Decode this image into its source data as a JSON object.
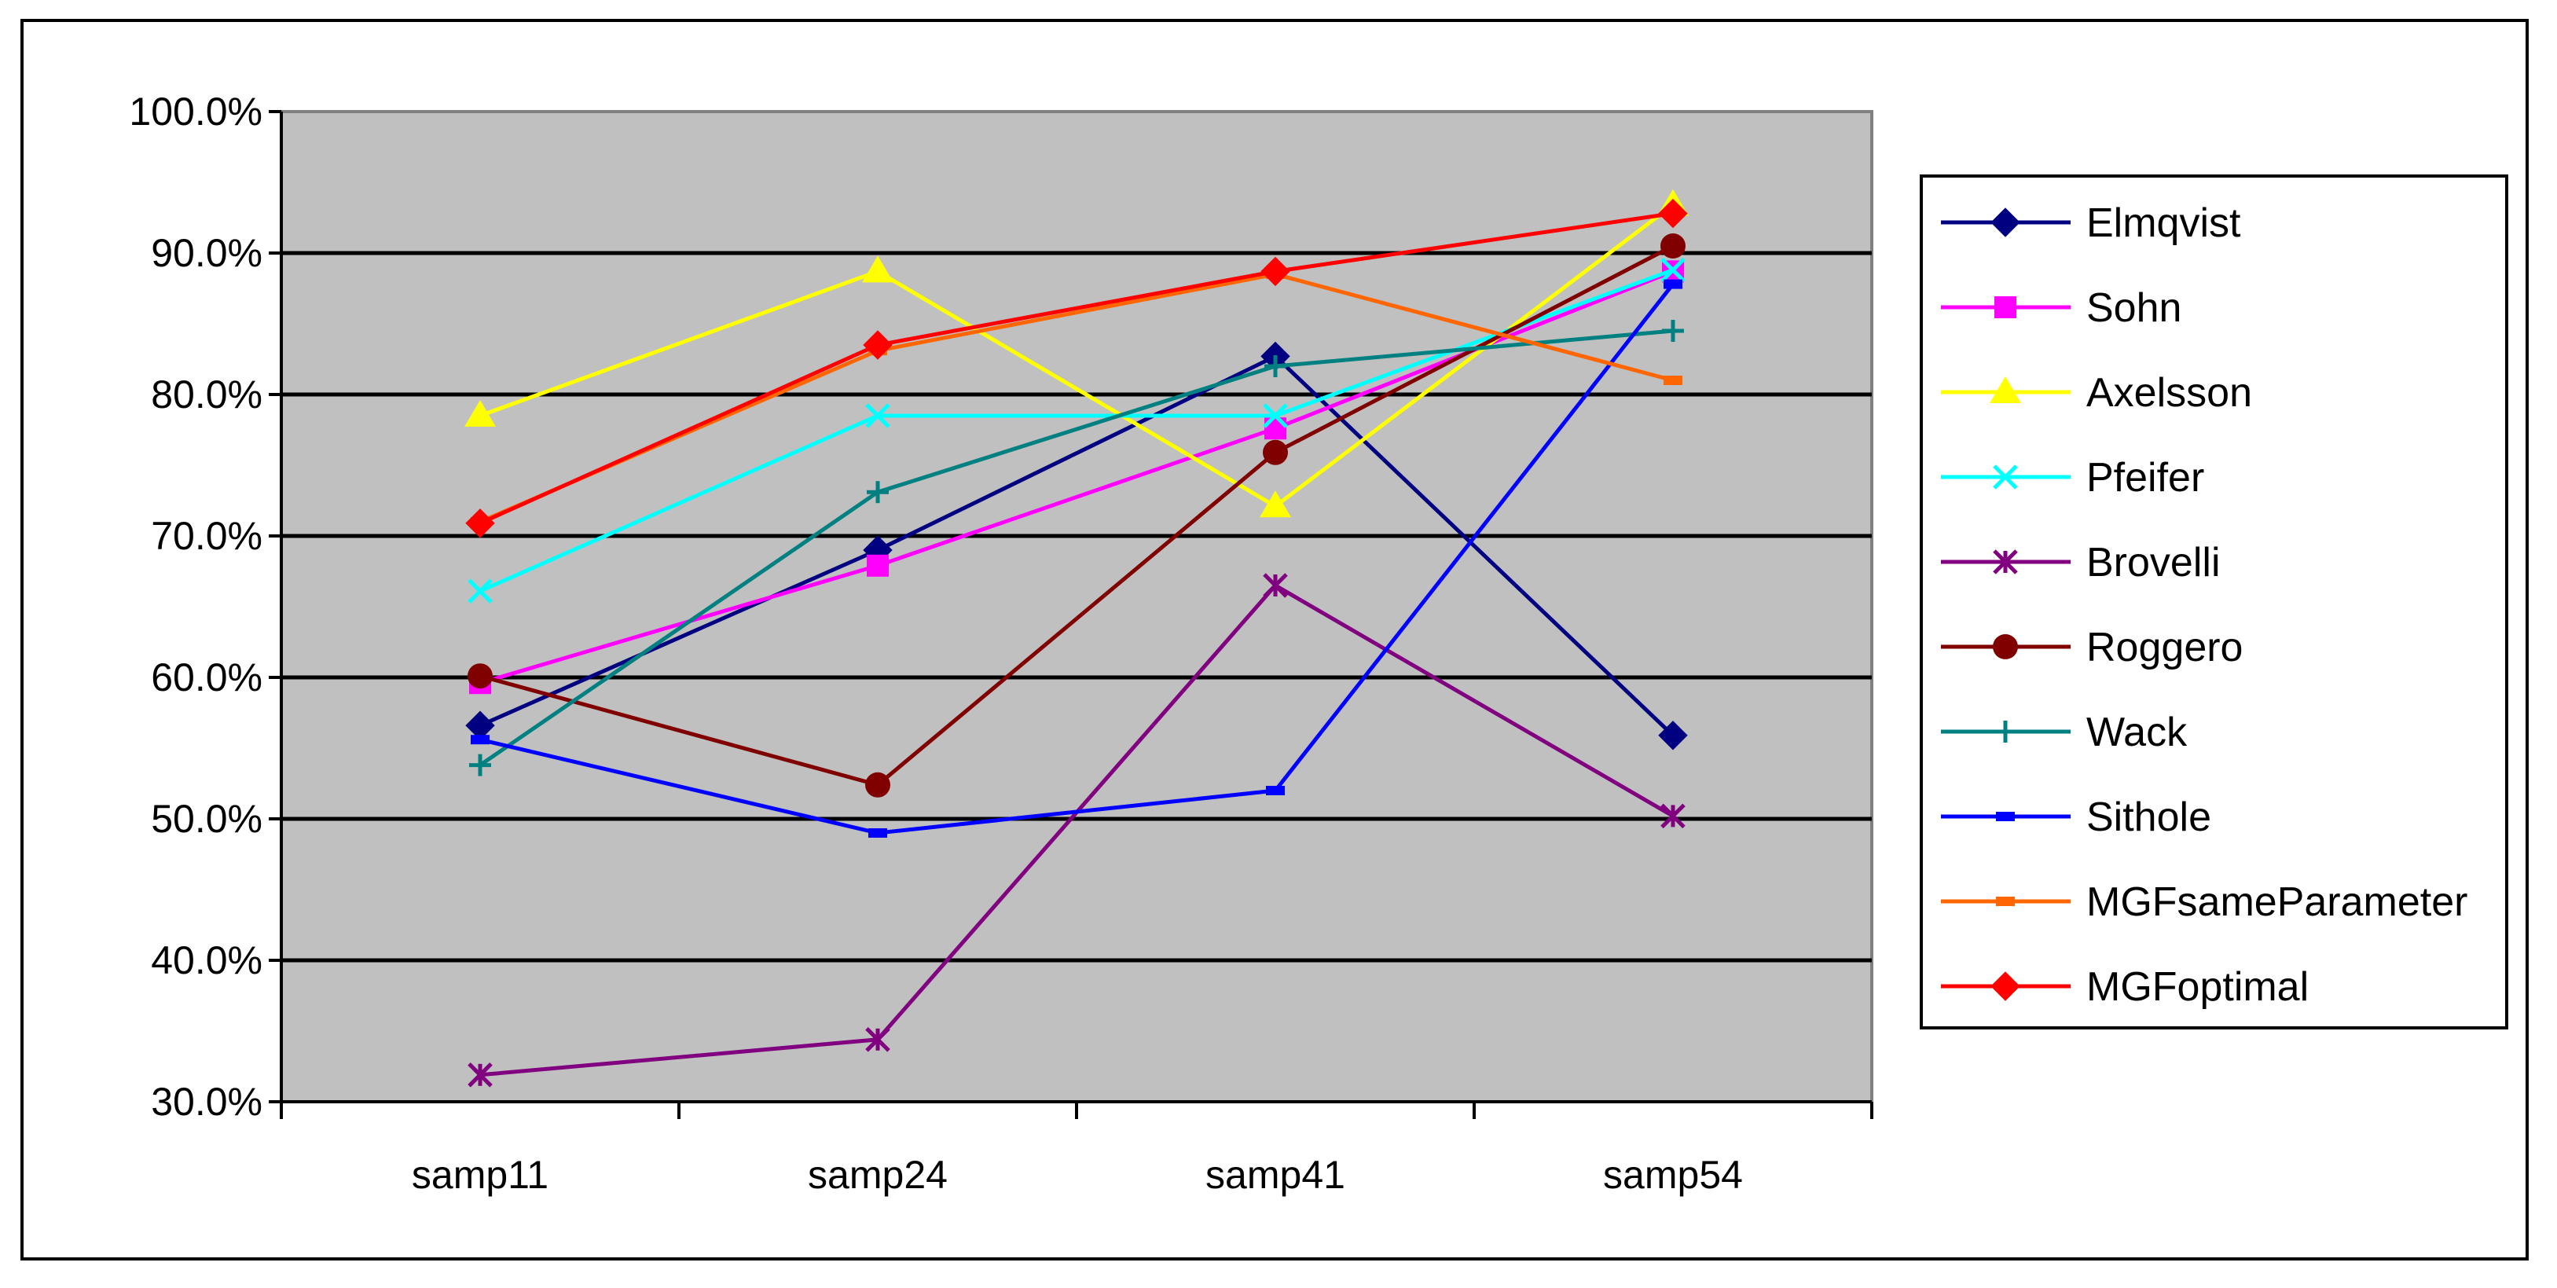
{
  "chart_data": {
    "type": "line",
    "categories": [
      "samp11",
      "samp24",
      "samp41",
      "samp54"
    ],
    "ylim": [
      0.3,
      1.0
    ],
    "ytick_labels": [
      "30.0%",
      "40.0%",
      "50.0%",
      "60.0%",
      "70.0%",
      "80.0%",
      "90.0%",
      "100.0%"
    ],
    "ytick_values": [
      0.3,
      0.4,
      0.5,
      0.6,
      0.7,
      0.8,
      0.9,
      1.0
    ],
    "grid": true,
    "plot_background": "#c0c0c0",
    "legend_position": "right",
    "series": [
      {
        "name": "Elmqvist",
        "values": [
          0.566,
          0.69,
          0.827,
          0.559
        ],
        "color": "#000080",
        "marker": "diamond"
      },
      {
        "name": "Sohn",
        "values": [
          0.596,
          0.679,
          0.776,
          0.887
        ],
        "color": "#ff00ff",
        "marker": "square"
      },
      {
        "name": "Axelsson",
        "values": [
          0.785,
          0.887,
          0.721,
          0.934
        ],
        "color": "#ffff00",
        "marker": "triangle"
      },
      {
        "name": "Pfeifer",
        "values": [
          0.661,
          0.785,
          0.785,
          0.888
        ],
        "color": "#00ffff",
        "marker": "x"
      },
      {
        "name": "Brovelli",
        "values": [
          0.319,
          0.344,
          0.665,
          0.502
        ],
        "color": "#800080",
        "marker": "star"
      },
      {
        "name": "Roggero",
        "values": [
          0.601,
          0.524,
          0.759,
          0.905
        ],
        "color": "#800000",
        "marker": "circle"
      },
      {
        "name": "Wack",
        "values": [
          0.538,
          0.731,
          0.82,
          0.845
        ],
        "color": "#008080",
        "marker": "plus"
      },
      {
        "name": "Sithole",
        "values": [
          0.556,
          0.49,
          0.52,
          0.878
        ],
        "color": "#0000ff",
        "marker": "dash"
      },
      {
        "name": "MGFsameParameter",
        "values": [
          0.71,
          0.831,
          0.885,
          0.81
        ],
        "color": "#ff6600",
        "marker": "dash"
      },
      {
        "name": "MGFoptimal",
        "values": [
          0.709,
          0.835,
          0.887,
          0.928
        ],
        "color": "#ff0000",
        "marker": "diamond"
      }
    ]
  }
}
